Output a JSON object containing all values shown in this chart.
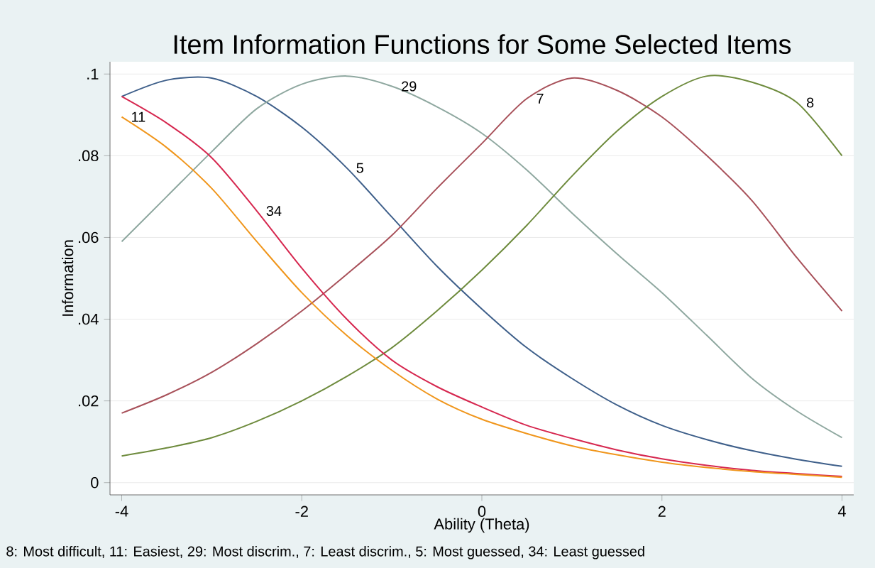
{
  "chart_data": {
    "type": "line",
    "title": "Item Information Functions for Some Selected Items",
    "xlabel": "Ability (Theta)",
    "ylabel": "Information",
    "x": [
      -4,
      -3.5,
      -3,
      -2.5,
      -2,
      -1.5,
      -1,
      -0.5,
      0,
      0.5,
      1,
      1.5,
      2,
      2.5,
      3,
      3.5,
      4
    ],
    "series": [
      {
        "color": "#3e5f8a",
        "values": [
          0.0945,
          0.0985,
          0.099,
          0.0945,
          0.087,
          0.077,
          0.065,
          0.053,
          0.0425,
          0.033,
          0.0255,
          0.019,
          0.014,
          0.0105,
          0.0078,
          0.0057,
          0.004
        ]
      },
      {
        "color": "#8fa8a0",
        "values": [
          0.059,
          0.07,
          0.081,
          0.0915,
          0.0975,
          0.0995,
          0.097,
          0.092,
          0.0855,
          0.0765,
          0.066,
          0.056,
          0.0465,
          0.036,
          0.0255,
          0.0175,
          0.011
        ]
      },
      {
        "color": "#a8515a",
        "values": [
          0.017,
          0.0215,
          0.027,
          0.034,
          0.042,
          0.051,
          0.0605,
          0.072,
          0.083,
          0.094,
          0.099,
          0.096,
          0.0895,
          0.08,
          0.069,
          0.055,
          0.042
        ]
      },
      {
        "color": "#6e8b3d",
        "values": [
          0.0065,
          0.0085,
          0.011,
          0.015,
          0.02,
          0.026,
          0.033,
          0.042,
          0.052,
          0.063,
          0.075,
          0.086,
          0.0945,
          0.0995,
          0.098,
          0.093,
          0.08
        ]
      },
      {
        "color": "#d6274f",
        "values": [
          0.0945,
          0.088,
          0.0795,
          0.0665,
          0.0525,
          0.04,
          0.03,
          0.0235,
          0.0185,
          0.014,
          0.0108,
          0.008,
          0.0058,
          0.0042,
          0.003,
          0.0022,
          0.0015
        ]
      },
      {
        "color": "#f0961c",
        "values": [
          0.0895,
          0.082,
          0.072,
          0.059,
          0.0465,
          0.036,
          0.0275,
          0.0205,
          0.0155,
          0.012,
          0.009,
          0.0068,
          0.005,
          0.0037,
          0.0027,
          0.002,
          0.0013
        ]
      }
    ],
    "xlim": [
      -4.13,
      4.13
    ],
    "ylim": [
      -0.003,
      0.103
    ],
    "xticks": [
      -4,
      -2,
      0,
      2,
      4
    ],
    "yticks": [
      {
        "value": 0,
        "label": "0"
      },
      {
        "value": 0.02,
        "label": ".02"
      },
      {
        "value": 0.04,
        "label": ".04"
      },
      {
        "value": 0.06,
        "label": ".06"
      },
      {
        "value": 0.08,
        "label": ".08"
      },
      {
        "value": 0.1,
        "label": ".1"
      }
    ],
    "grid": "y",
    "marker": "none",
    "line_style": "solid",
    "annotations": [
      {
        "text": "29",
        "x": -1,
        "y": 0.097
      },
      {
        "text": "7",
        "x": 0.5,
        "y": 0.094
      },
      {
        "text": "8",
        "x": 3.5,
        "y": 0.093
      },
      {
        "text": "5",
        "x": -1.5,
        "y": 0.077
      },
      {
        "text": "34",
        "x": -2.5,
        "y": 0.0665
      },
      {
        "text": "11",
        "x": -4,
        "y": 0.0895
      },
      "8: Most difficult, 11: Easiest, 29: Most discrim., 7: Least discrim., 5: Most guessed, 34: Least guessed"
    ]
  }
}
